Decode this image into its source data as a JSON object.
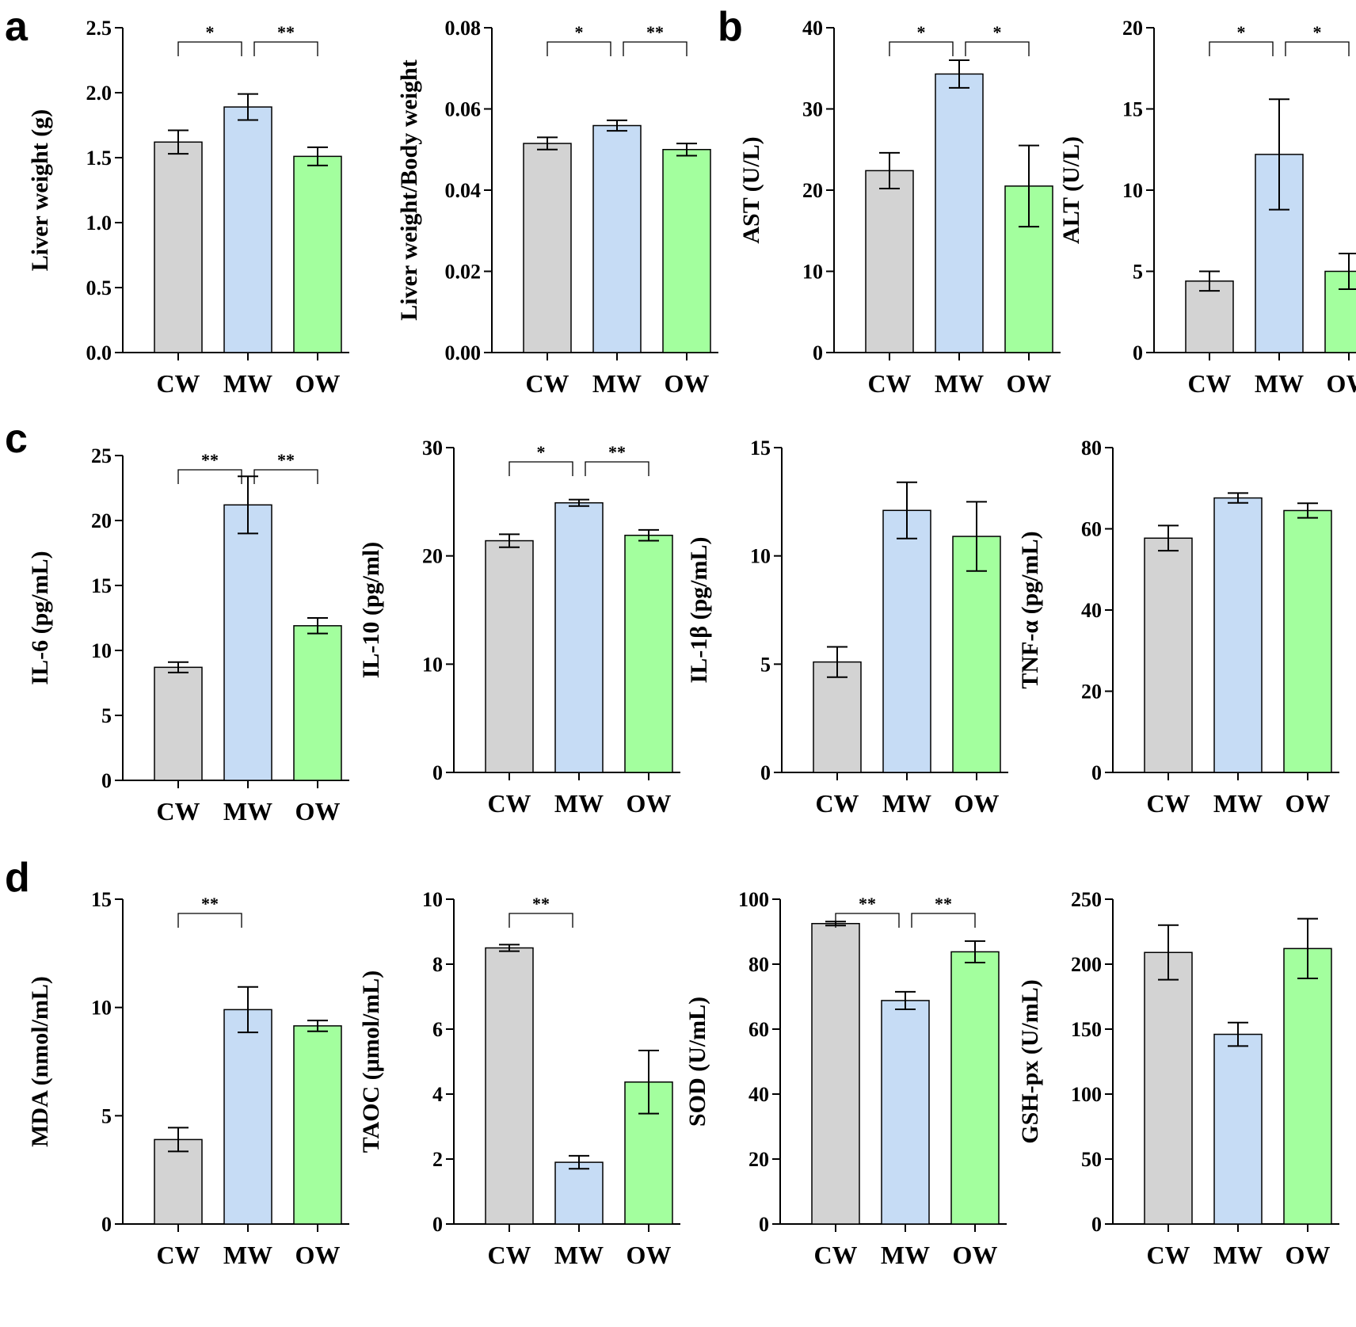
{
  "colors": {
    "CW": "#d3d3d3",
    "MW": "#c6dcf5",
    "OW": "#a3ff9e",
    "axis": "#000000"
  },
  "panel_labels": {
    "a": "a",
    "b": "b",
    "c": "c",
    "d": "d"
  },
  "chart_data": [
    {
      "type": "bar",
      "group": "a",
      "categories": [
        "CW",
        "MW",
        "OW"
      ],
      "values": [
        1.62,
        1.89,
        1.51
      ],
      "errors": [
        0.09,
        0.1,
        0.07
      ],
      "ylabel": "Liver weight (g)",
      "ylim": [
        0,
        2.5
      ],
      "ticks": [
        "0.0",
        "0.5",
        "1.0",
        "1.5",
        "2.0",
        "2.5"
      ],
      "sig": [
        {
          "from": 0,
          "to": 1,
          "label": "*"
        },
        {
          "from": 1,
          "to": 2,
          "label": "**"
        }
      ]
    },
    {
      "type": "bar",
      "group": "a",
      "categories": [
        "CW",
        "MW",
        "OW"
      ],
      "values": [
        0.0515,
        0.0559,
        0.05
      ],
      "errors": [
        0.0015,
        0.0013,
        0.0015
      ],
      "ylabel": "Liver weight/Body weight",
      "ylim": [
        0,
        0.08
      ],
      "ticks": [
        "0.00",
        "0.02",
        "0.04",
        "0.06",
        "0.08"
      ],
      "sig": [
        {
          "from": 0,
          "to": 1,
          "label": "*"
        },
        {
          "from": 1,
          "to": 2,
          "label": "**"
        }
      ]
    },
    {
      "type": "bar",
      "group": "b",
      "categories": [
        "CW",
        "MW",
        "OW"
      ],
      "values": [
        22.4,
        34.3,
        20.5
      ],
      "errors": [
        2.2,
        1.7,
        5.0
      ],
      "ylabel": "AST (U/L)",
      "ylim": [
        0,
        40
      ],
      "ticks": [
        "0",
        "10",
        "20",
        "30",
        "40"
      ],
      "sig": [
        {
          "from": 0,
          "to": 1,
          "label": "*"
        },
        {
          "from": 1,
          "to": 2,
          "label": "*"
        }
      ]
    },
    {
      "type": "bar",
      "group": "b",
      "categories": [
        "CW",
        "MW",
        "OW"
      ],
      "values": [
        4.4,
        12.2,
        5.0
      ],
      "errors": [
        0.6,
        3.4,
        1.1
      ],
      "ylabel": "ALT (U/L)",
      "ylim": [
        0,
        20
      ],
      "ticks": [
        "0",
        "5",
        "10",
        "15",
        "20"
      ],
      "sig": [
        {
          "from": 0,
          "to": 1,
          "label": "*"
        },
        {
          "from": 1,
          "to": 2,
          "label": "*"
        }
      ]
    },
    {
      "type": "bar",
      "group": "c",
      "categories": [
        "CW",
        "MW",
        "OW"
      ],
      "values": [
        8.7,
        21.2,
        11.9
      ],
      "errors": [
        0.4,
        2.2,
        0.6
      ],
      "ylabel": "IL-6 (pg/mL)",
      "ylim": [
        0,
        25
      ],
      "ticks": [
        "0",
        "5",
        "10",
        "15",
        "20",
        "25"
      ],
      "sig": [
        {
          "from": 0,
          "to": 1,
          "label": "**"
        },
        {
          "from": 1,
          "to": 2,
          "label": "**"
        }
      ]
    },
    {
      "type": "bar",
      "group": "c",
      "categories": [
        "CW",
        "MW",
        "OW"
      ],
      "values": [
        21.4,
        24.9,
        21.9
      ],
      "errors": [
        0.6,
        0.3,
        0.5
      ],
      "ylabel": "IL-10 (pg/ml)",
      "ylim": [
        0,
        30
      ],
      "ticks": [
        "0",
        "10",
        "20",
        "30"
      ],
      "sig": [
        {
          "from": 0,
          "to": 1,
          "label": "*"
        },
        {
          "from": 1,
          "to": 2,
          "label": "**"
        }
      ]
    },
    {
      "type": "bar",
      "group": "c",
      "categories": [
        "CW",
        "MW",
        "OW"
      ],
      "values": [
        5.1,
        12.1,
        10.9
      ],
      "errors": [
        0.7,
        1.3,
        1.6
      ],
      "ylabel": "IL-1β (pg/mL)",
      "ylim": [
        0,
        15
      ],
      "ticks": [
        "0",
        "5",
        "10",
        "15"
      ],
      "sig": []
    },
    {
      "type": "bar",
      "group": "c",
      "categories": [
        "CW",
        "MW",
        "OW"
      ],
      "values": [
        57.7,
        67.6,
        64.5
      ],
      "errors": [
        3.1,
        1.2,
        1.8
      ],
      "ylabel": "TNF-α (pg/mL)",
      "ylim": [
        0,
        80
      ],
      "ticks": [
        "0",
        "20",
        "40",
        "60",
        "80"
      ],
      "sig": []
    },
    {
      "type": "bar",
      "group": "d",
      "categories": [
        "CW",
        "MW",
        "OW"
      ],
      "values": [
        3.9,
        9.9,
        9.15
      ],
      "errors": [
        0.55,
        1.05,
        0.25
      ],
      "ylabel": "MDA (nmol/mL)",
      "ylim": [
        0,
        15
      ],
      "ticks": [
        "0",
        "5",
        "10",
        "15"
      ],
      "sig": [
        {
          "from": 0,
          "to": 1,
          "label": "**"
        }
      ]
    },
    {
      "type": "bar",
      "group": "d",
      "categories": [
        "CW",
        "MW",
        "OW"
      ],
      "values": [
        8.5,
        1.9,
        4.37
      ],
      "errors": [
        0.1,
        0.2,
        0.97
      ],
      "ylabel": "TAOC (μmol/mL)",
      "ylim": [
        0,
        10
      ],
      "ticks": [
        "0",
        "2",
        "4",
        "6",
        "8",
        "10"
      ],
      "sig": [
        {
          "from": 0,
          "to": 1,
          "label": "**"
        }
      ]
    },
    {
      "type": "bar",
      "group": "d",
      "categories": [
        "CW",
        "MW",
        "OW"
      ],
      "values": [
        92.5,
        68.8,
        83.8
      ],
      "errors": [
        0.6,
        2.7,
        3.3
      ],
      "ylabel": "SOD (U/mL)",
      "ylim": [
        0,
        100
      ],
      "ticks": [
        "0",
        "20",
        "40",
        "60",
        "80",
        "100"
      ],
      "sig": [
        {
          "from": 0,
          "to": 1,
          "label": "**"
        },
        {
          "from": 1,
          "to": 2,
          "label": "**"
        }
      ]
    },
    {
      "type": "bar",
      "group": "d",
      "categories": [
        "CW",
        "MW",
        "OW"
      ],
      "values": [
        209,
        146,
        212
      ],
      "errors": [
        21,
        9,
        23
      ],
      "ylabel": "GSH-px (U/mL)",
      "ylim": [
        0,
        250
      ],
      "ticks": [
        "0",
        "50",
        "100",
        "150",
        "200",
        "250"
      ],
      "sig": []
    }
  ]
}
